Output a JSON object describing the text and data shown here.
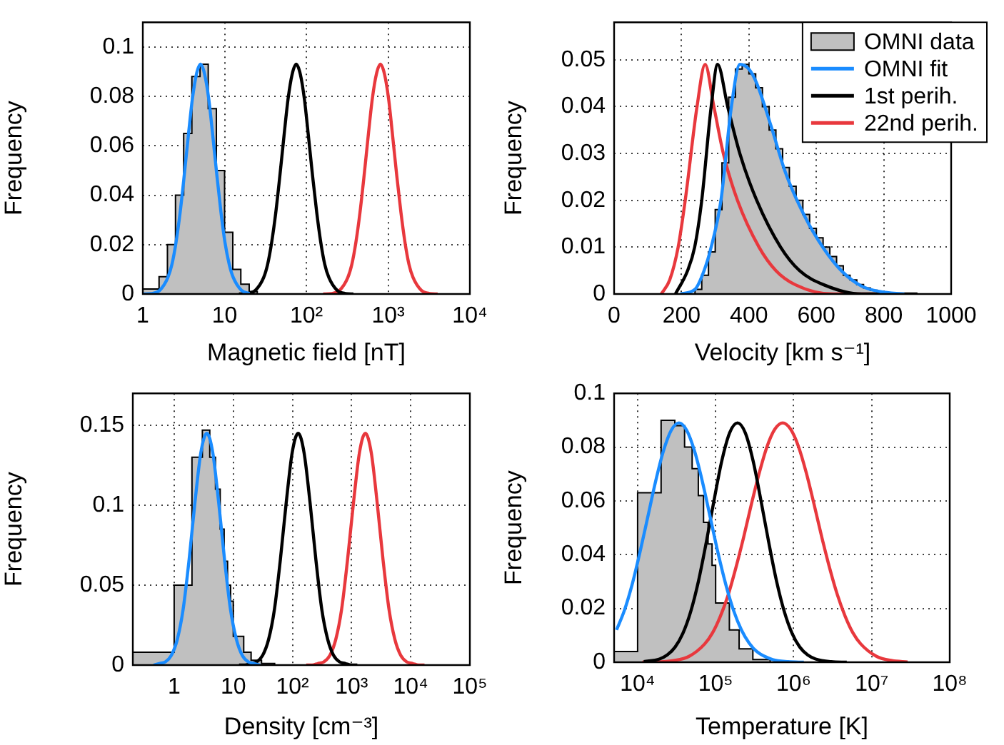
{
  "chart_data": [
    {
      "type": "line",
      "xlabel": "Magnetic field [nT]",
      "ylabel": "Frequency",
      "log": "x",
      "grid": true,
      "legend": false,
      "xlim": [
        1,
        10000
      ],
      "xticks": [
        1,
        10,
        {
          "value": 100,
          "label": "10²"
        },
        {
          "value": 1000,
          "label": "10³"
        },
        {
          "value": 10000,
          "label": "10⁴"
        }
      ],
      "ylim": [
        0,
        0.11
      ],
      "yticks": [
        0,
        0.02,
        0.04,
        0.06,
        0.08,
        0.1
      ],
      "series": [
        {
          "type": "histogram",
          "color": "#c0c0c0",
          "bins": [
            1,
            1.26,
            1.58,
            2,
            2.51,
            3.16,
            3.98,
            5.01,
            6.31,
            7.94,
            10,
            12.6,
            15.8,
            20,
            25.1,
            31.6
          ],
          "values": [
            0.002,
            0.002,
            0.007,
            0.02,
            0.04,
            0.065,
            0.088,
            0.093,
            0.075,
            0.05,
            0.025,
            0.01,
            0.004,
            0.001,
            0
          ]
        },
        {
          "type": "line",
          "color": "#1a8cff",
          "x": [
            1.01,
            1.28,
            1.61,
            2.02,
            2.27,
            2.55,
            2.86,
            3.21,
            3.6,
            4.04,
            4.53,
            5.08,
            5.7,
            6.4,
            7.18,
            8.05,
            9.04,
            10.1,
            11.4,
            12.8,
            16.1,
            20.2
          ],
          "values": [
            0,
            0.0002,
            0.0015,
            0.0066,
            0.012,
            0.021,
            0.033,
            0.048,
            0.064,
            0.079,
            0.089,
            0.093,
            0.089,
            0.079,
            0.064,
            0.048,
            0.033,
            0.021,
            0.012,
            0.0066,
            0.0015,
            0.0002
          ]
        },
        {
          "type": "line",
          "color": "#000000",
          "x": [
            15,
            18.9,
            23.8,
            30,
            33.6,
            37.7,
            42.3,
            47.5,
            53.3,
            59.8,
            67.1,
            75.2,
            84.4,
            94.6,
            106,
            119,
            134,
            150,
            168,
            189,
            238,
            300,
            376
          ],
          "values": [
            0,
            0.0002,
            0.0015,
            0.0066,
            0.012,
            0.021,
            0.033,
            0.048,
            0.064,
            0.079,
            0.089,
            0.093,
            0.089,
            0.079,
            0.064,
            0.048,
            0.033,
            0.021,
            0.012,
            0.0066,
            0.0015,
            0.0002,
            0
          ]
        },
        {
          "type": "line",
          "color": "#e8383d",
          "x": [
            161,
            203,
            255,
            321,
            360,
            404,
            453,
            509,
            571,
            641,
            719,
            806,
            904,
            1014,
            1136,
            1275,
            1436,
            1607,
            1800,
            2025,
            2550,
            3214,
            4029
          ],
          "values": [
            0,
            0.0002,
            0.0015,
            0.0066,
            0.012,
            0.021,
            0.033,
            0.048,
            0.064,
            0.079,
            0.089,
            0.093,
            0.089,
            0.079,
            0.064,
            0.048,
            0.033,
            0.021,
            0.012,
            0.0066,
            0.0015,
            0.0002,
            0
          ]
        }
      ]
    },
    {
      "type": "line",
      "xlabel": "Velocity [km s⁻¹]",
      "ylabel": "Frequency",
      "grid": true,
      "legend": "top right",
      "xlim": [
        0,
        1000
      ],
      "xticks": [
        0,
        200,
        400,
        600,
        800,
        1000
      ],
      "ylim": [
        0,
        0.058
      ],
      "yticks": [
        0,
        0.01,
        0.02,
        0.03,
        0.04,
        0.05
      ],
      "series": [
        {
          "type": "histogram",
          "name": "OMNI data",
          "color": "#c0c0c0",
          "bins": [
            240,
            260,
            280,
            300,
            320,
            340,
            360,
            380,
            400,
            420,
            440,
            460,
            480,
            500,
            520,
            540,
            560,
            580,
            600,
            620,
            640,
            660,
            680,
            700,
            720,
            740,
            760,
            780,
            800
          ],
          "values": [
            0.001,
            0.004,
            0.009,
            0.018,
            0.028,
            0.042,
            0.048,
            0.049,
            0.047,
            0.044,
            0.04,
            0.035,
            0.031,
            0.027,
            0.023,
            0.02,
            0.017,
            0.014,
            0.012,
            0.01,
            0.008,
            0.006,
            0.004,
            0.003,
            0.002,
            0.0013,
            0.0008,
            0.0005
          ]
        },
        {
          "type": "line",
          "name": "OMNI fit",
          "color": "#1a8cff",
          "x": [
            197,
            240,
            267,
            288,
            317,
            348,
            373,
            400,
            423,
            465,
            508,
            564,
            621,
            678,
            734,
            790,
            861
          ],
          "values": [
            0,
            0.001,
            0.005,
            0.01,
            0.02,
            0.04,
            0.049,
            0.048,
            0.045,
            0.036,
            0.026,
            0.0168,
            0.0098,
            0.0047,
            0.0017,
            0.0005,
            0
          ]
        },
        {
          "type": "line",
          "name": "1st perih.",
          "color": "#000000",
          "x": [
            182,
            218,
            239,
            260,
            288,
            307,
            337,
            373,
            423,
            494,
            550,
            621,
            734,
            900
          ],
          "values": [
            0,
            0.005,
            0.01,
            0.02,
            0.04,
            0.049,
            0.04,
            0.03,
            0.02,
            0.01,
            0.005,
            0.002,
            0,
            0
          ]
        },
        {
          "type": "line",
          "name": "22nd perih.",
          "color": "#e8383d",
          "x": [
            140,
            165,
            190,
            211,
            246,
            270,
            296,
            324,
            366,
            430,
            480,
            537,
            650,
            810
          ],
          "values": [
            0,
            0.003,
            0.01,
            0.02,
            0.04,
            0.049,
            0.04,
            0.03,
            0.02,
            0.01,
            0.005,
            0.002,
            0,
            0
          ]
        }
      ]
    },
    {
      "type": "line",
      "xlabel": "Density [cm⁻³]",
      "ylabel": "Frequency",
      "log": "x",
      "grid": true,
      "legend": false,
      "xlim": [
        0.2,
        100000
      ],
      "xticks": [
        1,
        10,
        {
          "value": 100,
          "label": "10²"
        },
        {
          "value": 1000,
          "label": "10³"
        },
        {
          "value": 10000,
          "label": "10⁴"
        },
        {
          "value": 100000,
          "label": "10⁵"
        }
      ],
      "ylim": [
        0,
        0.17
      ],
      "yticks": [
        0,
        0.05,
        0.1,
        0.15
      ],
      "series": [
        {
          "type": "histogram",
          "color": "#c0c0c0",
          "bins": [
            0.2,
            1,
            2,
            3,
            4,
            5,
            6,
            7,
            8,
            9,
            10,
            15,
            20,
            30,
            50
          ],
          "values": [
            0.008,
            0.05,
            0.13,
            0.147,
            0.13,
            0.11,
            0.085,
            0.065,
            0.05,
            0.04,
            0.018,
            0.008,
            0.003,
            0.001
          ]
        },
        {
          "type": "line",
          "color": "#1a8cff",
          "x": [
            0.449,
            0.565,
            0.711,
            0.895,
            1.13,
            1.42,
            1.79,
            2.25,
            2.83,
            3.57,
            4.49,
            5.65,
            7.11,
            8.95,
            11.3,
            14.2,
            17.9,
            22.5,
            28.3
          ],
          "values": [
            0,
            0.001,
            0.002,
            0.006,
            0.016,
            0.035,
            0.066,
            0.102,
            0.133,
            0.145,
            0.133,
            0.102,
            0.066,
            0.035,
            0.016,
            0.006,
            0.002,
            0.001,
            0
          ]
        },
        {
          "type": "line",
          "color": "#000000",
          "x": [
            12.5,
            15.7,
            19.8,
            24.9,
            31.3,
            39.5,
            49.7,
            62.5,
            78.7,
            99.1,
            125,
            157,
            198,
            249,
            313,
            395,
            497,
            625,
            787,
            991,
            1250
          ],
          "values": [
            0,
            0,
            0.001,
            0.002,
            0.006,
            0.016,
            0.035,
            0.066,
            0.102,
            0.133,
            0.145,
            0.133,
            0.102,
            0.066,
            0.035,
            0.016,
            0.006,
            0.002,
            0.001,
            0,
            0
          ]
        },
        {
          "type": "line",
          "color": "#e8383d",
          "x": [
            171,
            215,
            270,
            340,
            429,
            540,
            679,
            855,
            1080,
            1360,
            1710,
            2150,
            2700,
            3400,
            4290,
            5400,
            6790,
            8550,
            10800,
            13600,
            17100
          ],
          "values": [
            0,
            0,
            0.001,
            0.002,
            0.006,
            0.016,
            0.035,
            0.066,
            0.102,
            0.133,
            0.145,
            0.133,
            0.102,
            0.066,
            0.035,
            0.016,
            0.006,
            0.002,
            0.001,
            0,
            0
          ]
        }
      ]
    },
    {
      "type": "line",
      "xlabel": "Temperature [K]",
      "ylabel": "Frequency",
      "log": "x",
      "grid": true,
      "legend": false,
      "xlim": [
        5000,
        100000000
      ],
      "xticks": [
        {
          "value": 10000,
          "label": "10⁴"
        },
        {
          "value": 100000,
          "label": "10⁵"
        },
        {
          "value": 1000000,
          "label": "10⁶"
        },
        {
          "value": 10000000,
          "label": "10⁷"
        },
        {
          "value": 100000000,
          "label": "10⁸"
        }
      ],
      "ylim": [
        0,
        0.1
      ],
      "yticks": [
        0,
        0.02,
        0.04,
        0.06,
        0.08,
        0.1
      ],
      "series": [
        {
          "type": "histogram",
          "color": "#c0c0c0",
          "bins": [
            5000,
            10000,
            20000,
            30000,
            40000,
            50000,
            60000,
            70000,
            80000,
            90000,
            100000,
            150000,
            200000,
            300000,
            500000
          ],
          "values": [
            0.004,
            0.063,
            0.09,
            0.088,
            0.08,
            0.072,
            0.062,
            0.052,
            0.044,
            0.036,
            0.022,
            0.012,
            0.005,
            0.001
          ]
        },
        {
          "type": "line",
          "color": "#1a8cff",
          "x": [
            5370,
            6760,
            8510,
            10700,
            13500,
            17000,
            21400,
            26900,
            33900,
            42700,
            53700,
            67600,
            85100,
            107000,
            135000,
            170000,
            214000,
            269000,
            339000,
            537000,
            851000,
            1350000
          ],
          "values": [
            0.012,
            0.0192,
            0.0289,
            0.0408,
            0.054,
            0.0672,
            0.0785,
            0.0862,
            0.089,
            0.0862,
            0.0785,
            0.0672,
            0.054,
            0.0408,
            0.0289,
            0.0192,
            0.012,
            0.0071,
            0.0039,
            0.001,
            0.0002,
            0
          ]
        },
        {
          "type": "line",
          "color": "#000000",
          "x": [
            12000,
            19100,
            24000,
            30200,
            38000,
            47900,
            60300,
            75900,
            95500,
            120000,
            151000,
            191000,
            240000,
            302000,
            380000,
            479000,
            603000,
            759000,
            955000,
            1200000,
            1510000,
            1910000,
            3020000,
            4790000
          ],
          "values": [
            0.0002,
            0.0012,
            0.0027,
            0.0056,
            0.0107,
            0.0188,
            0.0302,
            0.0446,
            0.0603,
            0.0749,
            0.0853,
            0.089,
            0.0853,
            0.0749,
            0.0603,
            0.0446,
            0.0302,
            0.0188,
            0.0107,
            0.0056,
            0.0027,
            0.0012,
            0.0002,
            0
          ]
        },
        {
          "type": "line",
          "color": "#e8383d",
          "x": [
            11500,
            18200,
            28800,
            45700,
            72400,
            91200,
            115000,
            145000,
            182000,
            229000,
            288000,
            363000,
            457000,
            575000,
            724000,
            912000,
            1150000,
            1450000,
            1820000,
            2290000,
            2880000,
            3630000,
            4570000,
            5750000,
            7240000,
            11500000,
            18200000,
            28800000
          ],
          "values": [
            0,
            0.0001,
            0.0006,
            0.0022,
            0.0068,
            0.0109,
            0.0171,
            0.0251,
            0.0352,
            0.0466,
            0.0589,
            0.0705,
            0.0803,
            0.0867,
            0.089,
            0.0867,
            0.0803,
            0.0705,
            0.0589,
            0.0466,
            0.0352,
            0.0251,
            0.0171,
            0.0109,
            0.0068,
            0.0022,
            0.0006,
            0.0001
          ]
        }
      ]
    }
  ]
}
